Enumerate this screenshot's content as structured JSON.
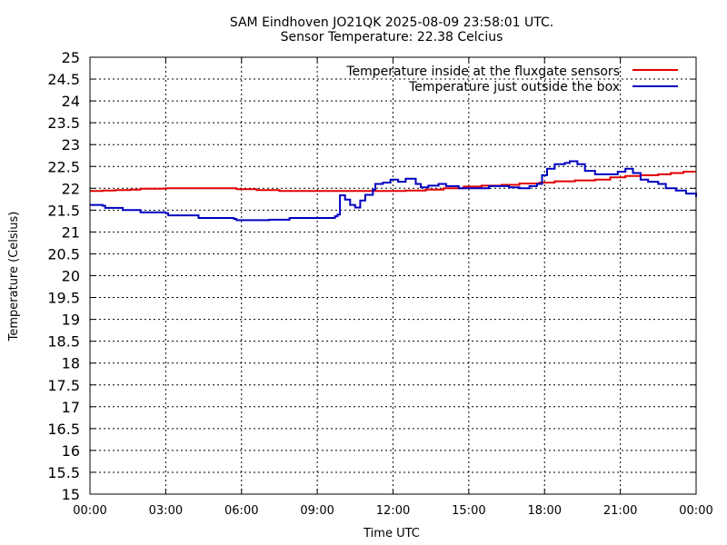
{
  "chart_data": {
    "type": "line",
    "title": "SAM Eindhoven JO21QK 2025-08-09 23:58:01 UTC.",
    "subtitle": "Sensor Temperature: 22.38 Celcius",
    "xlabel": "Time UTC",
    "ylabel": "Temperature (Celsius)",
    "xlim": [
      0,
      24
    ],
    "ylim": [
      15,
      25
    ],
    "grid": true,
    "legend_position": "top-right",
    "x_ticks": [
      {
        "value": 0,
        "label": "00:00"
      },
      {
        "value": 3,
        "label": "03:00"
      },
      {
        "value": 6,
        "label": "06:00"
      },
      {
        "value": 9,
        "label": "09:00"
      },
      {
        "value": 12,
        "label": "12:00"
      },
      {
        "value": 15,
        "label": "15:00"
      },
      {
        "value": 18,
        "label": "18:00"
      },
      {
        "value": 21,
        "label": "21:00"
      },
      {
        "value": 24,
        "label": "00:00"
      }
    ],
    "y_ticks": [
      {
        "value": 15,
        "label": "15"
      },
      {
        "value": 15.5,
        "label": "15.5"
      },
      {
        "value": 16,
        "label": "16"
      },
      {
        "value": 16.5,
        "label": "16.5"
      },
      {
        "value": 17,
        "label": "17"
      },
      {
        "value": 17.5,
        "label": "17.5"
      },
      {
        "value": 18,
        "label": "18"
      },
      {
        "value": 18.5,
        "label": "18.5"
      },
      {
        "value": 19,
        "label": "19"
      },
      {
        "value": 19.5,
        "label": "19.5"
      },
      {
        "value": 20,
        "label": "20"
      },
      {
        "value": 20.5,
        "label": "20.5"
      },
      {
        "value": 21,
        "label": "21"
      },
      {
        "value": 21.5,
        "label": "21.5"
      },
      {
        "value": 22,
        "label": "22"
      },
      {
        "value": 22.5,
        "label": "22.5"
      },
      {
        "value": 23,
        "label": "23"
      },
      {
        "value": 23.5,
        "label": "23.5"
      },
      {
        "value": 24,
        "label": "24"
      },
      {
        "value": 24.5,
        "label": "24.5"
      },
      {
        "value": 25,
        "label": "25"
      }
    ],
    "series": [
      {
        "name": "Temperature inside at the fluxgate sensors",
        "color": "#e00000",
        "step": true,
        "points": [
          [
            0.0,
            21.94
          ],
          [
            0.5,
            21.95
          ],
          [
            1.0,
            21.96
          ],
          [
            1.6,
            21.97
          ],
          [
            2.0,
            21.99
          ],
          [
            3.0,
            22.0
          ],
          [
            4.0,
            22.0
          ],
          [
            5.0,
            22.0
          ],
          [
            5.8,
            21.98
          ],
          [
            6.6,
            21.96
          ],
          [
            7.5,
            21.94
          ],
          [
            9.0,
            21.94
          ],
          [
            10.5,
            21.94
          ],
          [
            11.5,
            21.94
          ],
          [
            12.5,
            21.95
          ],
          [
            13.3,
            21.97
          ],
          [
            14.0,
            22.0
          ],
          [
            14.8,
            22.04
          ],
          [
            15.5,
            22.06
          ],
          [
            16.3,
            22.08
          ],
          [
            17.0,
            22.11
          ],
          [
            17.8,
            22.13
          ],
          [
            18.4,
            22.16
          ],
          [
            19.2,
            22.18
          ],
          [
            20.0,
            22.2
          ],
          [
            20.6,
            22.25
          ],
          [
            21.2,
            22.28
          ],
          [
            21.8,
            22.3
          ],
          [
            22.5,
            22.32
          ],
          [
            23.0,
            22.35
          ],
          [
            23.5,
            22.38
          ],
          [
            24.0,
            22.38
          ]
        ]
      },
      {
        "name": "Temperature just outside the box",
        "color": "#0000c0",
        "step": true,
        "points": [
          [
            0.0,
            21.62
          ],
          [
            0.5,
            21.6
          ],
          [
            0.6,
            21.55
          ],
          [
            1.0,
            21.55
          ],
          [
            1.3,
            21.5
          ],
          [
            1.9,
            21.5
          ],
          [
            2.0,
            21.45
          ],
          [
            3.0,
            21.43
          ],
          [
            3.1,
            21.38
          ],
          [
            4.3,
            21.35
          ],
          [
            4.3,
            21.32
          ],
          [
            5.7,
            21.3
          ],
          [
            5.8,
            21.27
          ],
          [
            7.1,
            21.28
          ],
          [
            7.8,
            21.28
          ],
          [
            7.9,
            21.32
          ],
          [
            9.5,
            21.32
          ],
          [
            9.7,
            21.36
          ],
          [
            9.8,
            21.4
          ],
          [
            9.9,
            21.84
          ],
          [
            10.1,
            21.74
          ],
          [
            10.3,
            21.62
          ],
          [
            10.5,
            21.56
          ],
          [
            10.7,
            21.72
          ],
          [
            10.9,
            21.85
          ],
          [
            11.2,
            21.97
          ],
          [
            11.3,
            22.1
          ],
          [
            11.6,
            22.13
          ],
          [
            11.9,
            22.2
          ],
          [
            12.2,
            22.15
          ],
          [
            12.5,
            22.22
          ],
          [
            12.7,
            22.22
          ],
          [
            12.9,
            22.1
          ],
          [
            13.1,
            22.02
          ],
          [
            13.4,
            22.06
          ],
          [
            13.8,
            22.1
          ],
          [
            14.1,
            22.05
          ],
          [
            14.6,
            22.0
          ],
          [
            15.3,
            22.0
          ],
          [
            15.8,
            22.05
          ],
          [
            16.4,
            22.05
          ],
          [
            16.6,
            22.02
          ],
          [
            17.0,
            22.0
          ],
          [
            17.4,
            22.05
          ],
          [
            17.7,
            22.1
          ],
          [
            17.9,
            22.3
          ],
          [
            18.1,
            22.45
          ],
          [
            18.4,
            22.55
          ],
          [
            18.8,
            22.58
          ],
          [
            19.0,
            22.62
          ],
          [
            19.3,
            22.55
          ],
          [
            19.6,
            22.4
          ],
          [
            20.0,
            22.32
          ],
          [
            20.5,
            22.32
          ],
          [
            20.9,
            22.38
          ],
          [
            21.2,
            22.45
          ],
          [
            21.5,
            22.35
          ],
          [
            21.8,
            22.2
          ],
          [
            22.1,
            22.15
          ],
          [
            22.5,
            22.1
          ],
          [
            22.8,
            22.0
          ],
          [
            23.2,
            21.95
          ],
          [
            23.6,
            21.88
          ],
          [
            24.0,
            21.8
          ]
        ]
      }
    ]
  }
}
